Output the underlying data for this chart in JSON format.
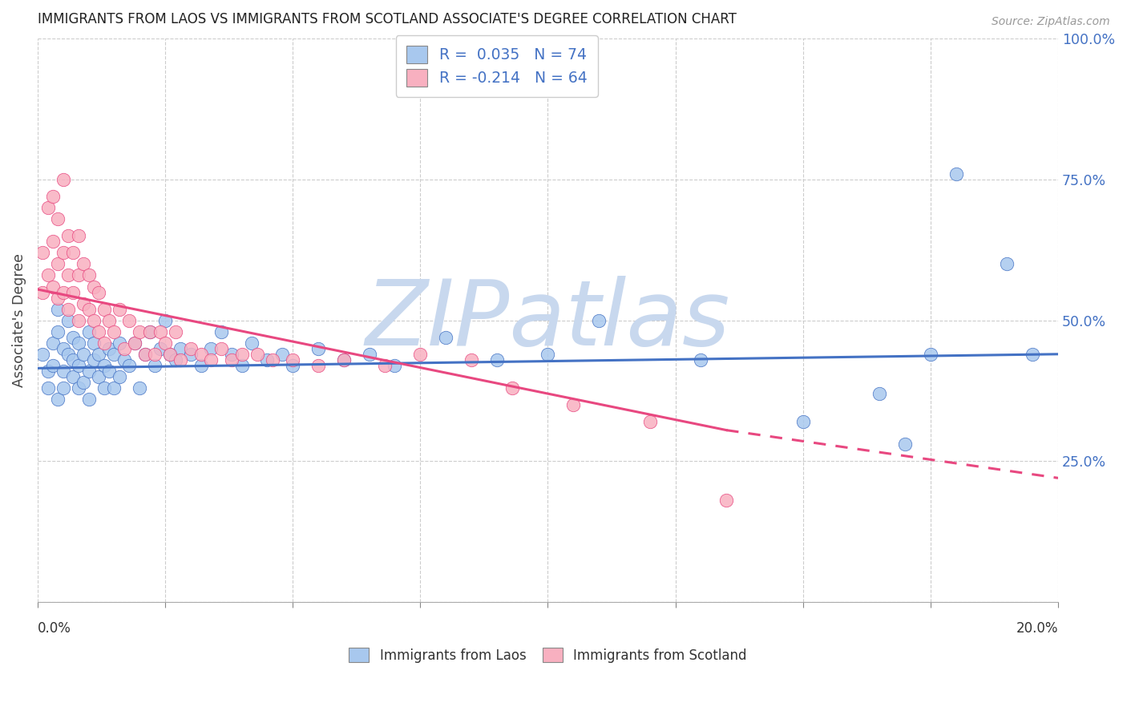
{
  "title": "IMMIGRANTS FROM LAOS VS IMMIGRANTS FROM SCOTLAND ASSOCIATE'S DEGREE CORRELATION CHART",
  "source": "Source: ZipAtlas.com",
  "ylabel": "Associate's Degree",
  "xlim": [
    0.0,
    0.2
  ],
  "ylim": [
    0.0,
    1.0
  ],
  "color_laos": "#a8c8ee",
  "color_scotland": "#f8b0c0",
  "color_laos_line": "#4472c4",
  "color_scotland_line": "#e84880",
  "watermark_color": "#c8d8ee",
  "r_laos": 0.035,
  "n_laos": 74,
  "r_scotland": -0.214,
  "n_scotland": 64,
  "laos_x": [
    0.001,
    0.002,
    0.002,
    0.003,
    0.003,
    0.004,
    0.004,
    0.004,
    0.005,
    0.005,
    0.005,
    0.006,
    0.006,
    0.007,
    0.007,
    0.007,
    0.008,
    0.008,
    0.008,
    0.009,
    0.009,
    0.01,
    0.01,
    0.01,
    0.011,
    0.011,
    0.012,
    0.012,
    0.013,
    0.013,
    0.014,
    0.014,
    0.015,
    0.015,
    0.016,
    0.016,
    0.017,
    0.018,
    0.019,
    0.02,
    0.021,
    0.022,
    0.023,
    0.024,
    0.025,
    0.026,
    0.027,
    0.028,
    0.03,
    0.032,
    0.034,
    0.036,
    0.038,
    0.04,
    0.042,
    0.045,
    0.048,
    0.05,
    0.055,
    0.06,
    0.065,
    0.07,
    0.08,
    0.09,
    0.1,
    0.11,
    0.13,
    0.15,
    0.165,
    0.17,
    0.175,
    0.18,
    0.19,
    0.195
  ],
  "laos_y": [
    0.44,
    0.41,
    0.38,
    0.46,
    0.42,
    0.48,
    0.36,
    0.52,
    0.41,
    0.45,
    0.38,
    0.44,
    0.5,
    0.4,
    0.43,
    0.47,
    0.38,
    0.42,
    0.46,
    0.39,
    0.44,
    0.41,
    0.48,
    0.36,
    0.43,
    0.46,
    0.4,
    0.44,
    0.42,
    0.38,
    0.45,
    0.41,
    0.44,
    0.38,
    0.46,
    0.4,
    0.43,
    0.42,
    0.46,
    0.38,
    0.44,
    0.48,
    0.42,
    0.45,
    0.5,
    0.44,
    0.43,
    0.45,
    0.44,
    0.42,
    0.45,
    0.48,
    0.44,
    0.42,
    0.46,
    0.43,
    0.44,
    0.42,
    0.45,
    0.43,
    0.44,
    0.42,
    0.47,
    0.43,
    0.44,
    0.5,
    0.43,
    0.32,
    0.37,
    0.28,
    0.44,
    0.76,
    0.6,
    0.44
  ],
  "scotland_x": [
    0.001,
    0.001,
    0.002,
    0.002,
    0.003,
    0.003,
    0.003,
    0.004,
    0.004,
    0.004,
    0.005,
    0.005,
    0.005,
    0.006,
    0.006,
    0.006,
    0.007,
    0.007,
    0.008,
    0.008,
    0.008,
    0.009,
    0.009,
    0.01,
    0.01,
    0.011,
    0.011,
    0.012,
    0.012,
    0.013,
    0.013,
    0.014,
    0.015,
    0.016,
    0.017,
    0.018,
    0.019,
    0.02,
    0.021,
    0.022,
    0.023,
    0.024,
    0.025,
    0.026,
    0.027,
    0.028,
    0.03,
    0.032,
    0.034,
    0.036,
    0.038,
    0.04,
    0.043,
    0.046,
    0.05,
    0.055,
    0.06,
    0.068,
    0.075,
    0.085,
    0.093,
    0.105,
    0.12,
    0.135
  ],
  "scotland_y": [
    0.55,
    0.62,
    0.58,
    0.7,
    0.56,
    0.64,
    0.72,
    0.54,
    0.6,
    0.68,
    0.55,
    0.62,
    0.75,
    0.52,
    0.58,
    0.65,
    0.55,
    0.62,
    0.5,
    0.58,
    0.65,
    0.53,
    0.6,
    0.52,
    0.58,
    0.5,
    0.56,
    0.48,
    0.55,
    0.52,
    0.46,
    0.5,
    0.48,
    0.52,
    0.45,
    0.5,
    0.46,
    0.48,
    0.44,
    0.48,
    0.44,
    0.48,
    0.46,
    0.44,
    0.48,
    0.43,
    0.45,
    0.44,
    0.43,
    0.45,
    0.43,
    0.44,
    0.44,
    0.43,
    0.43,
    0.42,
    0.43,
    0.42,
    0.44,
    0.43,
    0.38,
    0.35,
    0.32,
    0.18
  ],
  "trend_laos_x0": 0.0,
  "trend_laos_y0": 0.415,
  "trend_laos_x1": 0.2,
  "trend_laos_y1": 0.44,
  "trend_scot_x0": 0.0,
  "trend_scot_y0": 0.555,
  "trend_scot_xsolid": 0.135,
  "trend_scot_ysolid": 0.305,
  "trend_scot_x1": 0.2,
  "trend_scot_y1": 0.22
}
